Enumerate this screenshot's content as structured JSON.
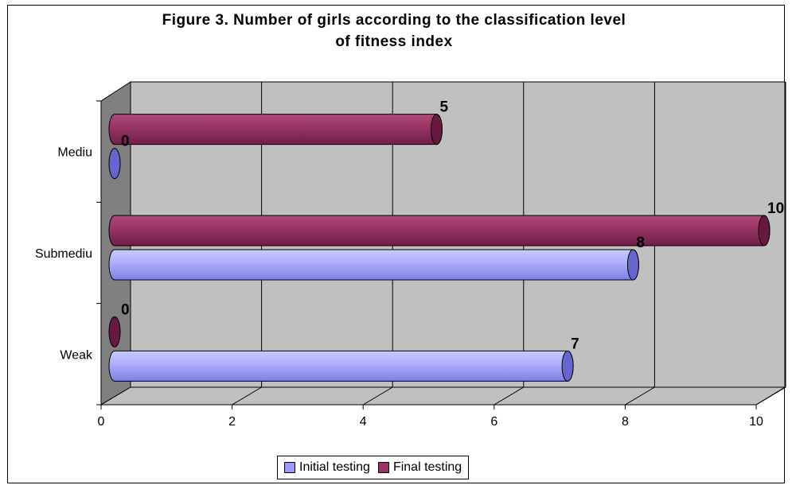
{
  "chart_data": {
    "type": "bar",
    "orientation": "horizontal",
    "style": "3d-cylinder",
    "title": "Figure 3. Number of girls according to the classification level",
    "title_line2": "of fitness index",
    "categories": [
      "Weak",
      "Submediu",
      "Mediu"
    ],
    "series": [
      {
        "name": "Initial testing",
        "values": [
          7,
          8,
          0
        ],
        "color": "#9999ff"
      },
      {
        "name": "Final testing",
        "values": [
          0,
          10,
          5
        ],
        "color": "#993366"
      }
    ],
    "xlim": [
      0,
      10
    ],
    "xticks": [
      "0",
      "2",
      "4",
      "6",
      "8",
      "10"
    ],
    "grid": true,
    "legend_position": "bottom",
    "plot_background": "#c0c0c0"
  }
}
